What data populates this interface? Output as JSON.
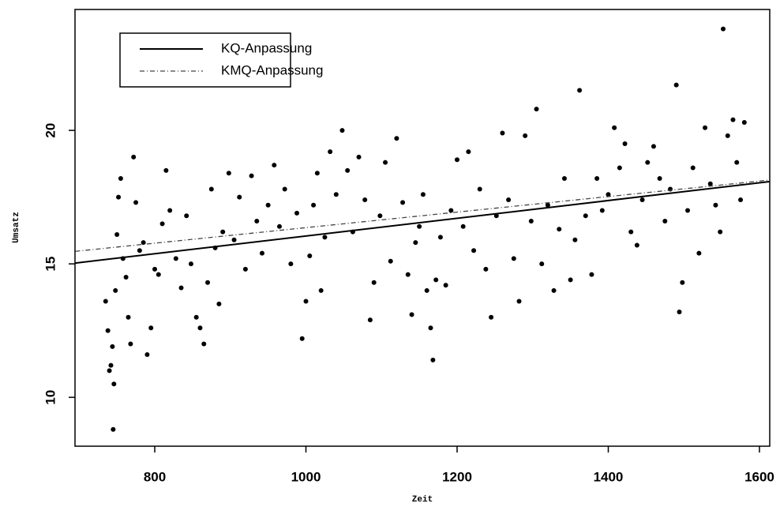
{
  "chart_data": {
    "type": "scatter",
    "x_label": "Zeit",
    "y_label": "Umsatz",
    "color": "#000000",
    "x": [
      735,
      738,
      740,
      742,
      744,
      746,
      745,
      748,
      750,
      752,
      755,
      758,
      762,
      765,
      768,
      772,
      775,
      780,
      785,
      790,
      795,
      800,
      805,
      810,
      815,
      820,
      828,
      835,
      842,
      848,
      855,
      860,
      865,
      870,
      875,
      880,
      885,
      890,
      898,
      905,
      912,
      920,
      928,
      935,
      942,
      950,
      958,
      965,
      972,
      980,
      988,
      995,
      1000,
      1005,
      1010,
      1015,
      1020,
      1025,
      1032,
      1040,
      1048,
      1055,
      1062,
      1070,
      1078,
      1085,
      1090,
      1098,
      1105,
      1112,
      1120,
      1128,
      1135,
      1140,
      1145,
      1150,
      1155,
      1160,
      1165,
      1168,
      1172,
      1178,
      1185,
      1192,
      1200,
      1208,
      1215,
      1222,
      1230,
      1238,
      1245,
      1252,
      1260,
      1268,
      1275,
      1282,
      1290,
      1298,
      1305,
      1312,
      1320,
      1328,
      1335,
      1342,
      1350,
      1356,
      1362,
      1370,
      1378,
      1385,
      1392,
      1400,
      1408,
      1415,
      1422,
      1430,
      1438,
      1445,
      1452,
      1460,
      1468,
      1475,
      1482,
      1490,
      1494,
      1498,
      1505,
      1512,
      1520,
      1528,
      1535,
      1542,
      1548,
      1552,
      1558,
      1565,
      1570,
      1575,
      1580
    ],
    "values": [
      13.6,
      12.5,
      11.0,
      11.2,
      11.9,
      10.5,
      8.8,
      14.0,
      16.1,
      17.5,
      18.2,
      15.2,
      14.5,
      13.0,
      12.0,
      19.0,
      17.3,
      15.5,
      15.8,
      11.6,
      12.6,
      14.8,
      14.6,
      16.5,
      18.5,
      17.0,
      15.2,
      14.1,
      16.8,
      15.0,
      13.0,
      12.6,
      12.0,
      14.3,
      17.8,
      15.6,
      13.5,
      16.2,
      18.4,
      15.9,
      17.5,
      14.8,
      18.3,
      16.6,
      15.4,
      17.2,
      18.7,
      16.4,
      17.8,
      15.0,
      16.9,
      12.2,
      13.6,
      15.3,
      17.2,
      18.4,
      14.0,
      16.0,
      19.2,
      17.6,
      20.0,
      18.5,
      16.2,
      19.0,
      17.4,
      12.9,
      14.3,
      16.8,
      18.8,
      15.1,
      19.7,
      17.3,
      14.6,
      13.1,
      15.8,
      16.4,
      17.6,
      14.0,
      12.6,
      11.4,
      14.4,
      16.0,
      14.2,
      17.0,
      18.9,
      16.4,
      19.2,
      15.5,
      17.8,
      14.8,
      13.0,
      16.8,
      19.9,
      17.4,
      15.2,
      13.6,
      19.8,
      16.6,
      20.8,
      15.0,
      17.2,
      14.0,
      16.3,
      18.2,
      14.4,
      15.9,
      21.5,
      16.8,
      14.6,
      18.2,
      17.0,
      17.6,
      20.1,
      18.6,
      19.5,
      16.2,
      15.7,
      17.4,
      18.8,
      19.4,
      18.2,
      16.6,
      17.8,
      21.7,
      13.2,
      14.3,
      17.0,
      18.6,
      15.4,
      20.1,
      18.0,
      17.2,
      16.2,
      23.8,
      19.8,
      20.4,
      18.8,
      17.4,
      20.3
    ],
    "lines": [
      {
        "name": "KQ-Anpassung",
        "color": "#000000",
        "dash": "solid",
        "x": [
          695,
          1613
        ],
        "values": [
          15.03,
          18.08
        ]
      },
      {
        "name": "KMQ-Anpassung",
        "color": "#444444",
        "dash": "dashdot",
        "x": [
          695,
          1613
        ],
        "values": [
          15.47,
          18.14
        ]
      }
    ],
    "xlim": [
      694.5,
      1613.6
    ],
    "ylim": [
      8.17,
      24.53
    ],
    "xticks": [
      800,
      1000,
      1200,
      1400,
      1600
    ],
    "yticks": [
      10,
      15,
      20
    ],
    "legend": "upper left"
  }
}
